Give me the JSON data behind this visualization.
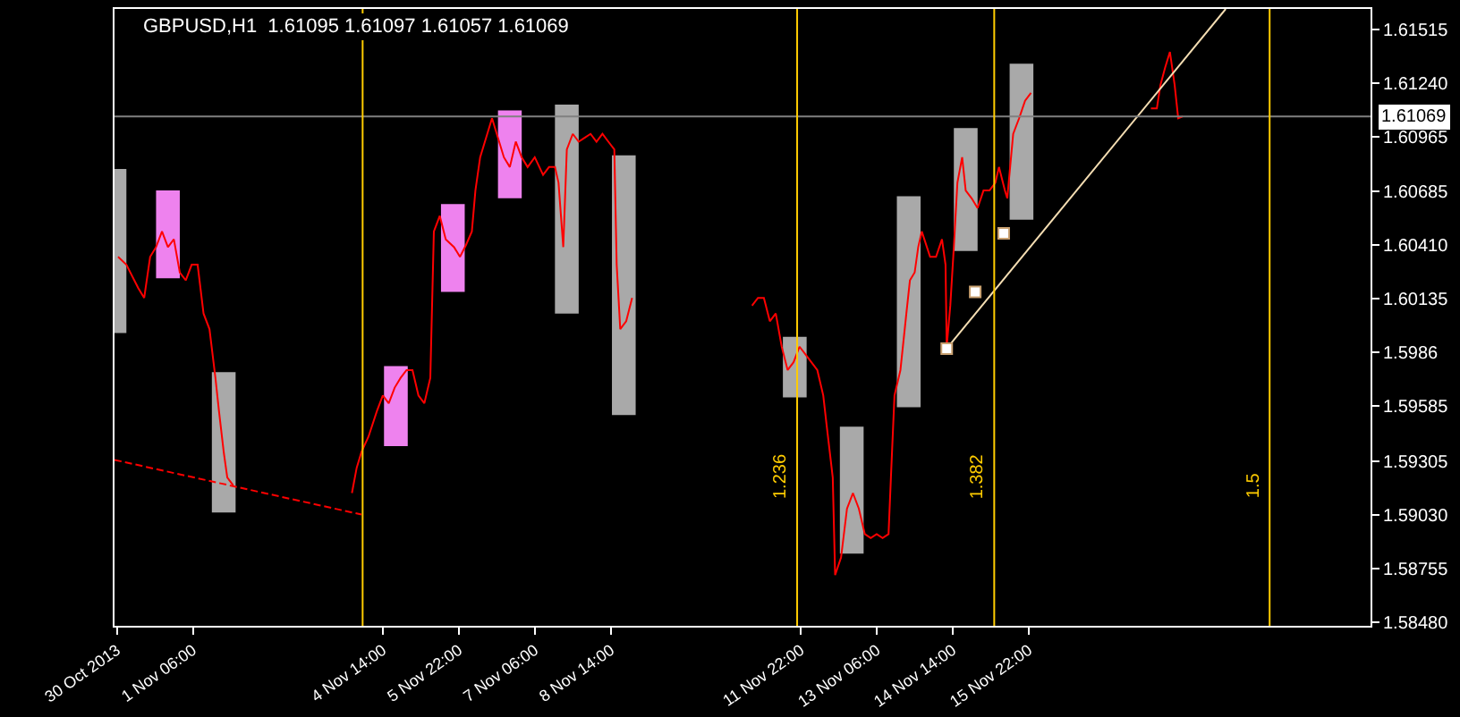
{
  "chart_data": {
    "type": "line",
    "title": "GBPUSD,H1  1.61095 1.61097 1.61057 1.61069",
    "xlim": [
      "2013-10-30T21:00",
      "2013-11-21T22:00"
    ],
    "xticks": [
      {
        "value": "2013-10-30T22:00",
        "label": "30 Oct 2013"
      },
      {
        "value": "2013-11-01T06:00",
        "label": "1 Nov 06:00"
      },
      {
        "value": "2013-11-04T14:00",
        "label": "4 Nov 14:00"
      },
      {
        "value": "2013-11-05T22:00",
        "label": "5 Nov 22:00"
      },
      {
        "value": "2013-11-07T06:00",
        "label": "7 Nov 06:00"
      },
      {
        "value": "2013-11-08T14:00",
        "label": "8 Nov 14:00"
      },
      {
        "value": "2013-11-11T22:00",
        "label": "11 Nov 22:00"
      },
      {
        "value": "2013-11-13T06:00",
        "label": "13 Nov 06:00"
      },
      {
        "value": "2013-11-14T14:00",
        "label": "14 Nov 14:00"
      },
      {
        "value": "2013-11-15T22:00",
        "label": "15 Nov 22:00"
      }
    ],
    "ylim": [
      1.5846,
      1.6162
    ],
    "yticks": [
      1.61515,
      {
        "value": 1.6124,
        "label": "1.61240"
      },
      1.60965,
      1.60685,
      {
        "value": 1.6041,
        "label": "1.60410"
      },
      1.60135,
      1.5986,
      1.59585,
      1.59305,
      {
        "value": 1.5903,
        "label": "1.59030"
      },
      1.58755,
      {
        "value": 1.5848,
        "label": "1.58480"
      }
    ],
    "series": [
      {
        "type": "bar",
        "x": [
          "2013-10-30T21:00",
          "2013-10-31T19:30",
          "2013-11-01T19:00",
          "2013-11-04T19:30",
          "2013-11-05T19:30",
          "2013-11-06T19:30",
          "2013-11-07T19:30",
          "2013-11-08T19:30",
          "2013-11-11T19:30",
          "2013-11-12T19:30",
          "2013-11-13T19:30",
          "2013-11-14T19:30",
          "2013-11-15T19:00"
        ],
        "base": [
          1.5996,
          1.6024,
          1.5904,
          1.5938,
          1.6017,
          1.6065,
          1.6006,
          1.5954,
          1.5963,
          1.5883,
          1.5958,
          1.6038,
          1.6054
        ],
        "values": [
          0.0084,
          0.0045,
          0.0072,
          0.0041,
          0.0045,
          0.0045,
          0.0107,
          0.0133,
          0.0031,
          0.0065,
          0.0108,
          0.0063,
          0.008
        ],
        "colors": [
          "#a9a9a9",
          "#ee82ee",
          "#a9a9a9",
          "#ee82ee",
          "#ee82ee",
          "#ee82ee",
          "#a9a9a9",
          "#a9a9a9",
          "#a9a9a9",
          "#a9a9a9",
          "#a9a9a9",
          "#a9a9a9",
          "#a9a9a9"
        ]
      },
      {
        "color": "#ff0000",
        "x": [
          "2013-10-30T22:30",
          "2013-10-31T02:00",
          "2013-10-31T07:00",
          "2013-10-31T09:30",
          "2013-10-31T12:00",
          "2013-10-31T14:30",
          "2013-10-31T17:00",
          "2013-10-31T19:30",
          "2013-10-31T22:00",
          "2013-11-01T00:30",
          "2013-11-01T03:00",
          "2013-11-01T05:30",
          "2013-11-01T08:00",
          "2013-11-01T10:30",
          "2013-11-01T13:00",
          "2013-11-01T15:30",
          "2013-11-01T17:00",
          "2013-11-01T19:00",
          "2013-11-01T20:30",
          "2013-11-01T23:00",
          "2013-11-03T00:00",
          "2013-11-04T01:00",
          "2013-11-04T03:00",
          "2013-11-04T05:00",
          "2013-11-04T08:00",
          "2013-11-04T11:30",
          "2013-11-04T14:00",
          "2013-11-04T16:30",
          "2013-11-04T19:00",
          "2013-11-04T21:30",
          "2013-11-05T00:00",
          "2013-11-05T02:30",
          "2013-11-05T05:00",
          "2013-11-05T07:30",
          "2013-11-05T10:00",
          "2013-11-05T11:30",
          "2013-11-05T14:00",
          "2013-11-05T16:30",
          "2013-11-05T20:00",
          "2013-11-05T22:30",
          "2013-11-06T01:00",
          "2013-11-06T03:30",
          "2013-11-06T05:00",
          "2013-11-06T07:00",
          "2013-11-06T10:00",
          "2013-11-06T12:00",
          "2013-11-06T15:00",
          "2013-11-06T17:00",
          "2013-11-06T19:30",
          "2013-11-06T22:00",
          "2013-11-07T00:30",
          "2013-11-07T03:00",
          "2013-11-07T06:00",
          "2013-11-07T09:30",
          "2013-11-07T12:00",
          "2013-11-07T14:30",
          "2013-11-07T16:00",
          "2013-11-07T18:00",
          "2013-11-07T19:30",
          "2013-11-07T22:00",
          "2013-11-08T00:30",
          "2013-11-08T03:00",
          "2013-11-08T05:30",
          "2013-11-08T08:00",
          "2013-11-08T10:30",
          "2013-11-08T13:00",
          "2013-11-08T15:30",
          "2013-11-08T16:30",
          "2013-11-08T18:00",
          "2013-11-08T20:30",
          "2013-11-08T23:00",
          "2013-11-10T00:00",
          "2013-11-11T01:30",
          "2013-11-11T04:00",
          "2013-11-11T06:30",
          "2013-11-11T09:00",
          "2013-11-11T11:30",
          "2013-11-11T14:00",
          "2013-11-11T16:30",
          "2013-11-11T19:00",
          "2013-11-11T21:30",
          "2013-11-12T00:00",
          "2013-11-12T02:30",
          "2013-11-12T05:00",
          "2013-11-12T07:30",
          "2013-11-12T09:00",
          "2013-11-12T11:30",
          "2013-11-12T12:30",
          "2013-11-12T15:00",
          "2013-11-12T17:30",
          "2013-11-12T20:00",
          "2013-11-12T22:30",
          "2013-11-13T01:00",
          "2013-11-13T03:30",
          "2013-11-13T06:00",
          "2013-11-13T08:30",
          "2013-11-13T11:00",
          "2013-11-13T12:00",
          "2013-11-13T13:30",
          "2013-11-13T16:00",
          "2013-11-13T18:30",
          "2013-11-13T20:00",
          "2013-11-13T22:00",
          "2013-11-13T23:30",
          "2013-11-14T01:00",
          "2013-11-14T04:30",
          "2013-11-14T07:00",
          "2013-11-14T09:30",
          "2013-11-14T11:00",
          "2013-11-14T11:30",
          "2013-11-14T13:00",
          "2013-11-14T14:30",
          "2013-11-14T16:00",
          "2013-11-14T18:00",
          "2013-11-14T19:30",
          "2013-11-14T22:00",
          "2013-11-15T00:30",
          "2013-11-15T03:00",
          "2013-11-15T05:30",
          "2013-11-15T08:00",
          "2013-11-15T09:30",
          "2013-11-15T12:00",
          "2013-11-15T13:00",
          "2013-11-15T15:30",
          "2013-11-15T18:00",
          "2013-11-15T20:30",
          "2013-11-15T23:00",
          "2013-11-17T00:00",
          "2013-11-18T01:30",
          "2013-11-18T04:00",
          "2013-11-18T05:30",
          "2013-11-18T07:30",
          "2013-11-18T09:30",
          "2013-11-18T11:30",
          "2013-11-18T13:00",
          "2013-11-18T15:00"
        ],
        "values": [
          1.6035,
          1.6031,
          1.6019,
          1.6014,
          1.6035,
          1.604,
          1.6048,
          1.604,
          1.6044,
          1.6027,
          1.6023,
          1.6031,
          1.6031,
          1.6006,
          1.5998,
          1.5973,
          1.5956,
          1.5935,
          1.5922,
          1.5918,
          null,
          1.5914,
          1.5927,
          1.5935,
          1.5943,
          1.5956,
          1.5964,
          1.596,
          1.5968,
          1.5973,
          1.5977,
          1.5977,
          1.5964,
          1.596,
          1.5973,
          1.6048,
          1.6056,
          1.6044,
          1.604,
          1.6035,
          1.6041,
          1.6048,
          1.6069,
          1.6086,
          1.6098,
          1.6106,
          1.6094,
          1.6086,
          1.6081,
          1.6094,
          1.6086,
          1.6081,
          1.6086,
          1.6077,
          1.6081,
          1.6081,
          1.6073,
          1.604,
          1.609,
          1.6098,
          1.6094,
          1.6096,
          1.6098,
          1.6094,
          1.6098,
          1.6094,
          1.609,
          1.6031,
          1.5998,
          1.6002,
          1.6014,
          null,
          1.601,
          1.6014,
          1.6014,
          1.6002,
          1.6006,
          1.5989,
          1.5977,
          1.5981,
          1.5989,
          1.5985,
          1.5981,
          1.5977,
          1.5964,
          1.5948,
          1.5922,
          1.5872,
          1.5881,
          1.5906,
          1.5914,
          1.5906,
          1.5893,
          1.5891,
          1.5893,
          1.5891,
          1.5893,
          1.5922,
          1.5964,
          1.5977,
          1.6006,
          1.6023,
          1.6027,
          1.604,
          1.6048,
          1.6035,
          1.6035,
          1.6044,
          1.6031,
          1.5989,
          1.601,
          1.604,
          1.6073,
          1.6086,
          1.6069,
          1.6065,
          1.606,
          1.6069,
          1.6069,
          1.6073,
          1.6081,
          1.6069,
          1.6065,
          1.6098,
          1.6106,
          1.6115,
          1.6119,
          null,
          1.6111,
          1.6111,
          1.6123,
          1.6132,
          1.614,
          1.6123,
          1.6106,
          1.6107
        ]
      },
      {
        "type": "line",
        "color": "#ff0000",
        "line_style": "dashed",
        "x": [
          "2013-10-30T21:00",
          "2013-11-04T05:00"
        ],
        "values": [
          1.5931,
          1.5903
        ]
      },
      {
        "type": "line",
        "color": "#f5deb3",
        "x": [
          "2013-11-14T11:30",
          "2013-11-19T09:00"
        ],
        "values": [
          1.5988,
          1.6162
        ]
      },
      {
        "type": "scatter",
        "color": "#ffffff",
        "marker": "square",
        "x": [
          "2013-11-14T11:30",
          "2013-11-14T23:30",
          "2013-11-15T11:30"
        ],
        "values": [
          1.5988,
          1.6017,
          1.6047
        ]
      }
    ],
    "ref_lines": [
      {
        "axis": "y",
        "value": 1.61069,
        "label": "1.61069",
        "color": "#808080"
      },
      {
        "axis": "x",
        "value": "2013-11-04T05:30",
        "color": "#ffcc00"
      },
      {
        "axis": "x",
        "value": "2013-11-11T20:30",
        "color": "#ffcc00"
      },
      {
        "axis": "x",
        "value": "2013-11-15T07:30",
        "color": "#ffcc00"
      },
      {
        "axis": "x",
        "value": "2013-11-20T03:30",
        "color": "#ffcc00"
      }
    ],
    "annotations": [
      "1.236",
      "1.382",
      "1.5"
    ]
  }
}
